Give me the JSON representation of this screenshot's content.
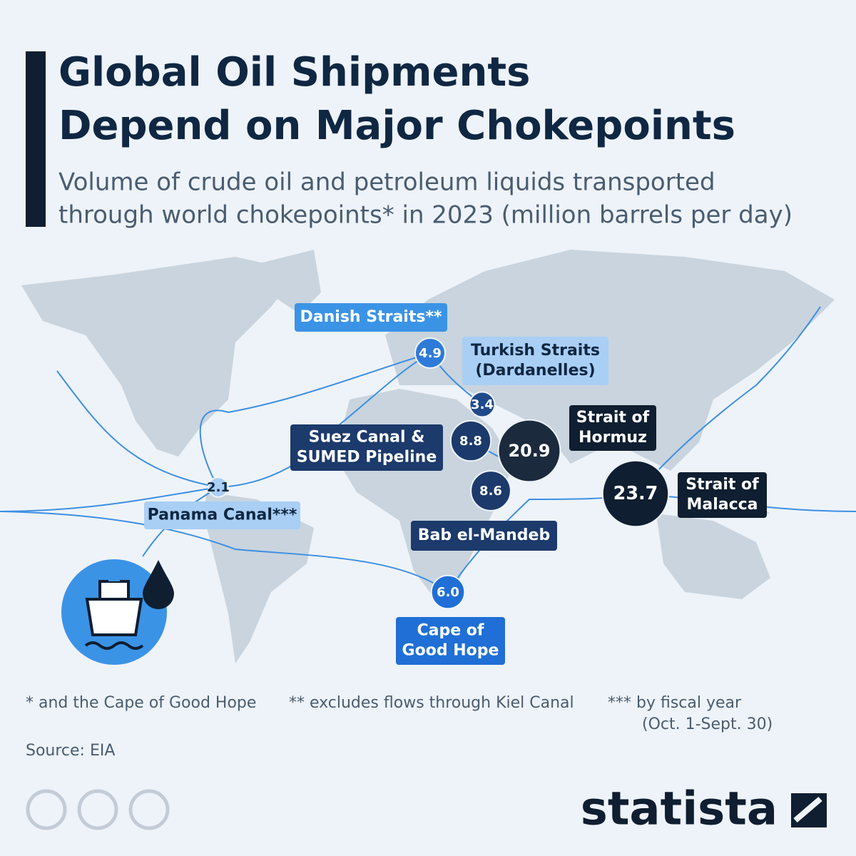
{
  "header": {
    "title": [
      "Global Oil Shipments",
      "Depend on Major Chokepoints"
    ],
    "subtitle": [
      "Volume of crude oil and petroleum liquids transported",
      "through world chokepoints* in 2023 (million barrels per day)"
    ]
  },
  "chokepoints": [
    {
      "name": [
        "Danish Straits**"
      ],
      "value": 4.9
    },
    {
      "name": [
        "Turkish Straits",
        "(Dardanelles)"
      ],
      "value": 3.4
    },
    {
      "name": [
        "Suez Canal &",
        "SUMED Pipeline"
      ],
      "value": 8.8
    },
    {
      "name": [
        "Strait of",
        "Hormuz"
      ],
      "value": 20.9
    },
    {
      "name": [
        "Bab el-Mandeb"
      ],
      "value": 8.6
    },
    {
      "name": [
        "Strait of",
        "Malacca"
      ],
      "value": 23.7
    },
    {
      "name": [
        "Cape of",
        "Good Hope"
      ],
      "value": 6,
      "value_label": "6.0"
    },
    {
      "name": [
        "Panama Canal***"
      ],
      "value": 2.1
    }
  ],
  "footnotes": [
    "* and the Cape of Good Hope",
    "** excludes flows through Kiel Canal",
    [
      "*** by fiscal year",
      "(Oct. 1-Sept. 30)"
    ]
  ],
  "source": "Source: EIA",
  "brand": "statista"
}
